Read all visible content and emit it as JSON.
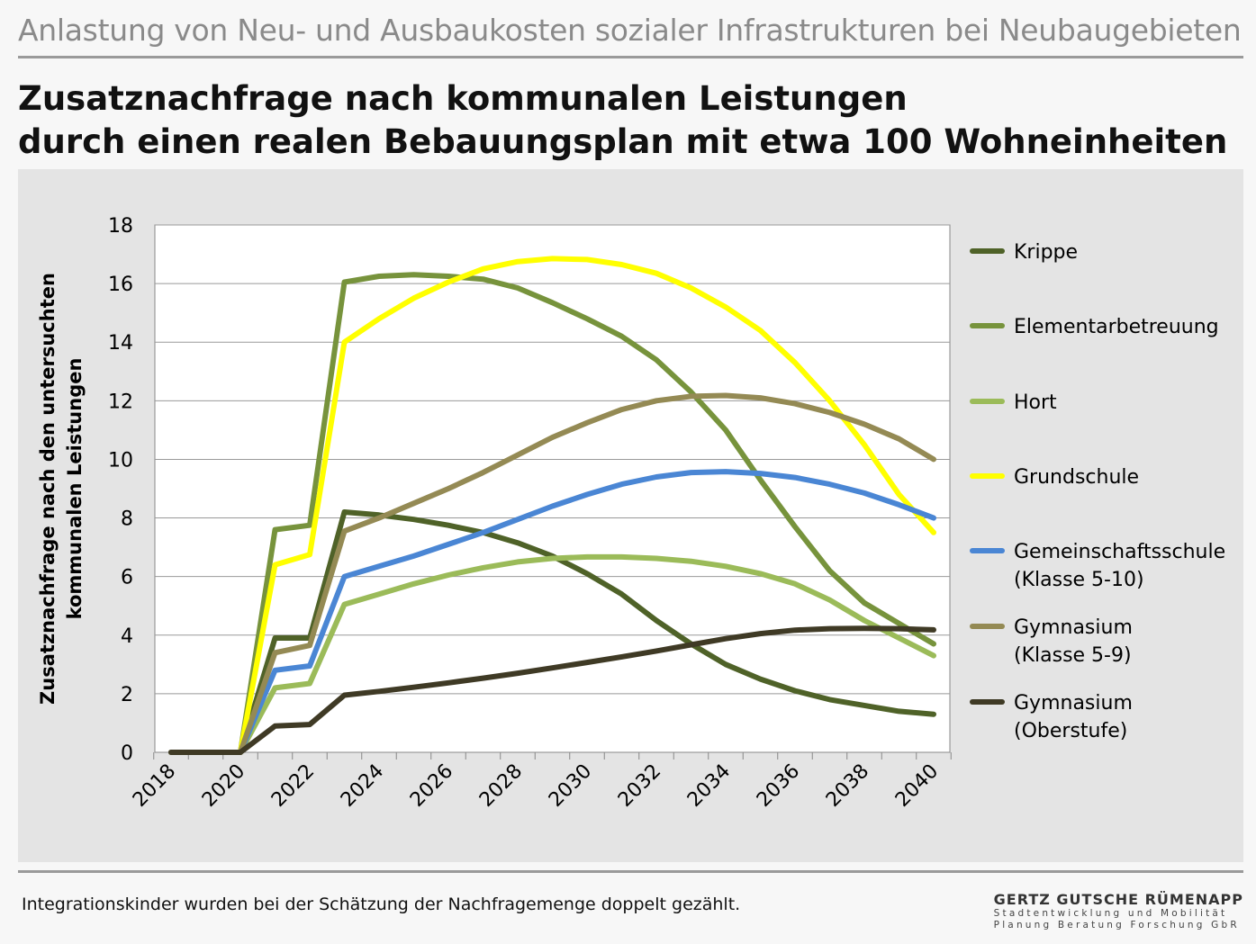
{
  "header": {
    "topic": "Anlastung von Neu- und Ausbaukosten sozialer Infrastrukturen bei Neubaugebieten",
    "title_line1": "Zusatznachfrage nach kommunalen Leistungen",
    "title_line2": "durch einen realen Bebauungsplan mit etwa 100 Wohneinheiten"
  },
  "footer": {
    "note": "Integrationskinder wurden bei der Schätzung der Nachfragemenge doppelt gezählt.",
    "company_name": "GERTZ GUTSCHE RÜMENAPP",
    "company_line1": "Stadtentwicklung und Mobilität",
    "company_line2": "Planung Beratung Forschung GbR"
  },
  "chart_data": {
    "type": "line",
    "ylabel_line1": "Zusatznachfrage nach den untersuchten",
    "ylabel_line2": "kommunalen Leistungen",
    "ylim": [
      0,
      18
    ],
    "yticks": [
      0,
      2,
      4,
      6,
      8,
      10,
      12,
      14,
      16,
      18
    ],
    "xticks": [
      "2018",
      "2020",
      "2022",
      "2024",
      "2026",
      "2028",
      "2030",
      "2032",
      "2034",
      "2036",
      "2038",
      "2040"
    ],
    "x": [
      2018,
      2019,
      2020,
      2021,
      2022,
      2023,
      2024,
      2025,
      2026,
      2027,
      2028,
      2029,
      2030,
      2031,
      2032,
      2033,
      2034,
      2035,
      2036,
      2037,
      2038,
      2039,
      2040
    ],
    "grid": "horizontal",
    "legend_position": "right",
    "series": [
      {
        "name": "Krippe",
        "color": "#4f6228",
        "values": [
          0,
          0,
          0,
          3.9,
          3.9,
          8.2,
          8.1,
          7.95,
          7.75,
          7.5,
          7.15,
          6.7,
          6.1,
          5.4,
          4.5,
          3.7,
          3.0,
          2.5,
          2.1,
          1.8,
          1.6,
          1.4,
          1.3
        ]
      },
      {
        "name": "Elementarbetreuung",
        "color": "#77933c",
        "values": [
          0,
          0,
          0,
          7.6,
          7.75,
          16.05,
          16.25,
          16.3,
          16.25,
          16.15,
          15.85,
          15.35,
          14.8,
          14.2,
          13.4,
          12.3,
          11.0,
          9.3,
          7.7,
          6.2,
          5.1,
          4.4,
          3.7
        ]
      },
      {
        "name": "Hort",
        "color": "#9bbb59",
        "values": [
          0,
          0,
          0,
          2.2,
          2.35,
          5.05,
          5.4,
          5.75,
          6.05,
          6.3,
          6.5,
          6.62,
          6.67,
          6.67,
          6.62,
          6.52,
          6.35,
          6.1,
          5.75,
          5.2,
          4.5,
          3.9,
          3.3
        ]
      },
      {
        "name": "Grundschule",
        "color": "#ffff00",
        "values": [
          0,
          0,
          0,
          6.4,
          6.75,
          14.0,
          14.8,
          15.5,
          16.05,
          16.5,
          16.75,
          16.85,
          16.82,
          16.65,
          16.35,
          15.85,
          15.2,
          14.4,
          13.3,
          12.0,
          10.5,
          8.8,
          7.5
        ]
      },
      {
        "name": "Gemeinschaftsschule (Klasse 5-10)",
        "label_line1": "Gemeinschaftsschule",
        "label_line2": "(Klasse 5-10)",
        "color": "#4a86d4",
        "values": [
          0,
          0,
          0,
          2.8,
          2.95,
          6.0,
          6.35,
          6.7,
          7.1,
          7.5,
          7.95,
          8.4,
          8.8,
          9.15,
          9.4,
          9.55,
          9.58,
          9.52,
          9.38,
          9.15,
          8.85,
          8.45,
          8.0
        ]
      },
      {
        "name": "Gymnasium (Klasse 5-9)",
        "label_line1": "Gymnasium",
        "label_line2": "(Klasse 5-9)",
        "color": "#948a54",
        "values": [
          0,
          0,
          0,
          3.4,
          3.65,
          7.55,
          8.0,
          8.5,
          9.0,
          9.55,
          10.15,
          10.75,
          11.25,
          11.7,
          12.0,
          12.15,
          12.18,
          12.1,
          11.9,
          11.6,
          11.2,
          10.7,
          10.0
        ]
      },
      {
        "name": "Gymnasium (Oberstufe)",
        "label_line1": "Gymnasium",
        "label_line2": "(Oberstufe)",
        "color": "#3f3a25",
        "values": [
          0,
          0,
          0,
          0.9,
          0.95,
          1.95,
          2.08,
          2.22,
          2.37,
          2.53,
          2.7,
          2.88,
          3.07,
          3.26,
          3.46,
          3.67,
          3.88,
          4.05,
          4.17,
          4.22,
          4.23,
          4.22,
          4.18
        ]
      }
    ]
  }
}
